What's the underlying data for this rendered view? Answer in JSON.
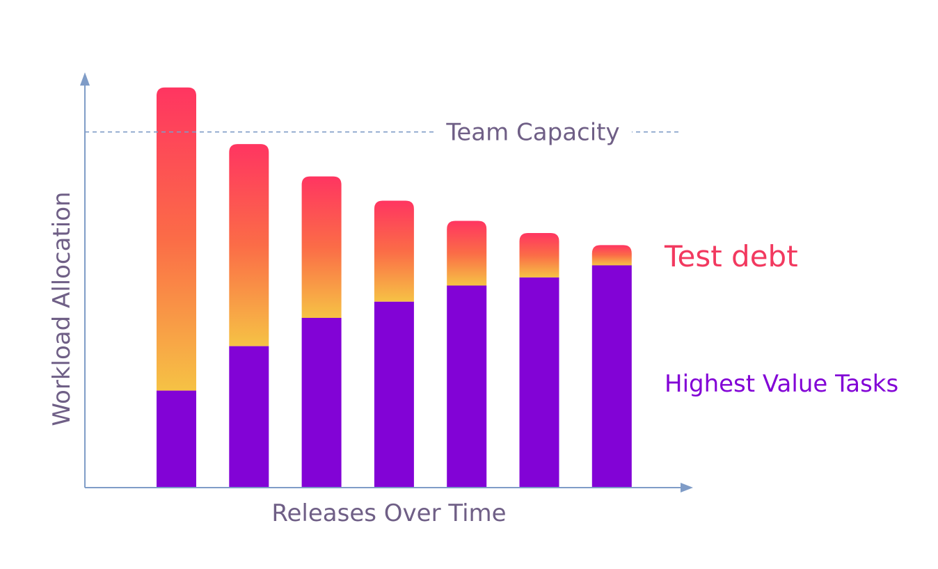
{
  "colors": {
    "axis": "#7f9cc7",
    "capacity_line": "#7f9cc7",
    "label_gray": "#6f5f86",
    "highest_value": "#8203d6",
    "test_debt_top": "#ff3561",
    "test_debt_mid": "#fb6c47",
    "test_debt_bottom": "#f6c245",
    "test_debt_label": "#f2395f",
    "highest_value_label": "#8203d6"
  },
  "chart_data": {
    "type": "bar",
    "stacked": true,
    "xlabel": "Releases Over Time",
    "ylabel": "Workload Allocation",
    "categories": [
      "",
      "",
      "",
      "",
      "",
      "",
      ""
    ],
    "series": [
      {
        "name": "Highest Value Tasks",
        "values": [
          24,
          35,
          42,
          46,
          50,
          52,
          55
        ]
      },
      {
        "name": "Test debt",
        "values": [
          75,
          50,
          35,
          25,
          16,
          11,
          5
        ]
      }
    ],
    "ylim": [
      0,
      105
    ],
    "grid": false,
    "reference_line": {
      "label": "Team Capacity",
      "value": 88,
      "style": "dashed"
    },
    "legend_position": "right"
  }
}
